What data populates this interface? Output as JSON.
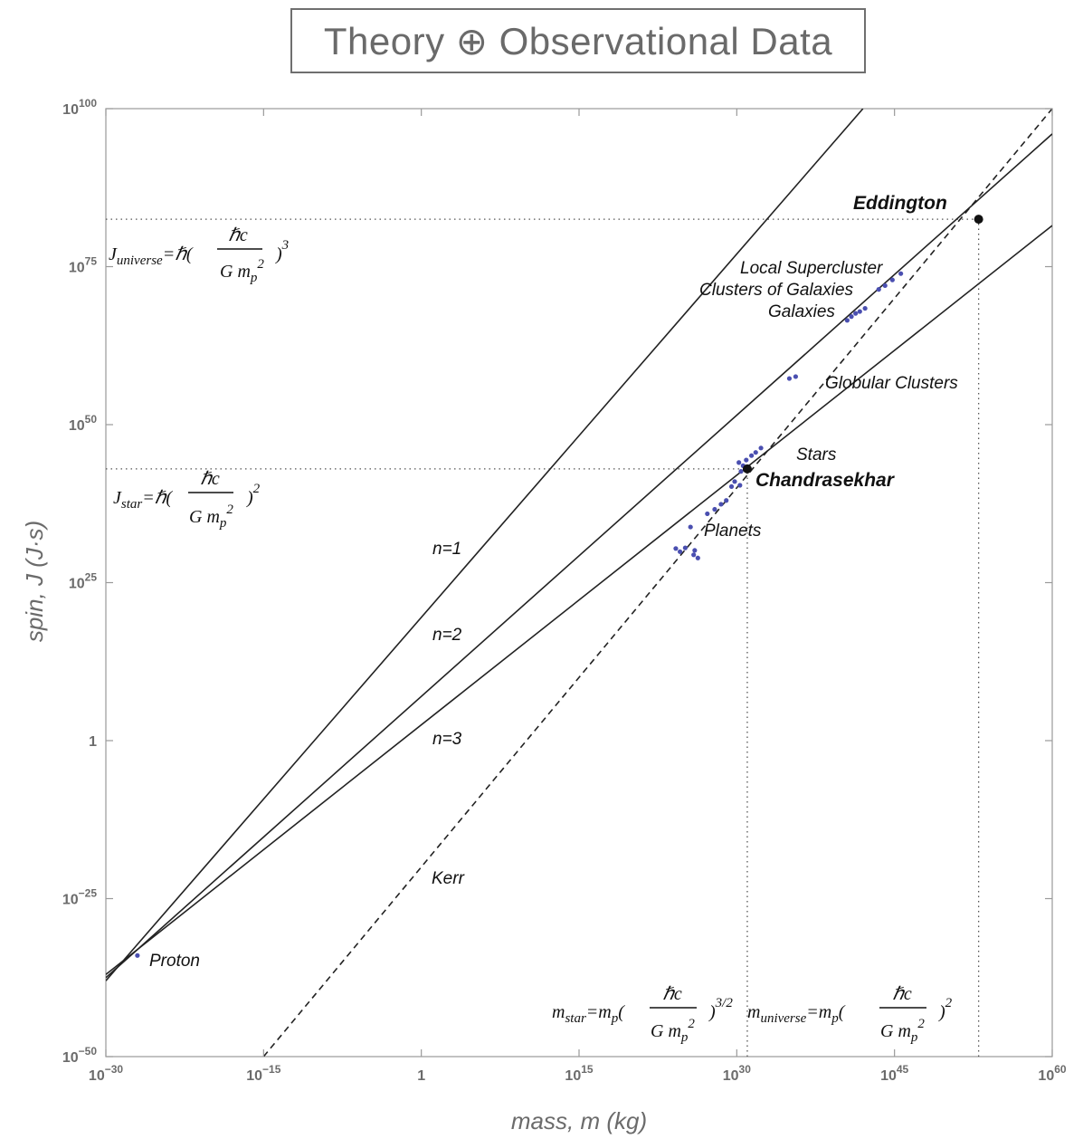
{
  "chart_data": {
    "type": "line",
    "title": "Theory ⊕ Observational Data",
    "xlabel": "mass, m (kg)",
    "ylabel": "spin, J (J·s)",
    "xscale": "log",
    "yscale": "log",
    "xlim_log10": [
      -30,
      60
    ],
    "ylim_log10": [
      -50,
      100
    ],
    "x_ticks": [
      {
        "label": "10",
        "exp": "−30"
      },
      {
        "label": "10",
        "exp": "−15"
      },
      {
        "label": "1",
        "exp": ""
      },
      {
        "label": "10",
        "exp": "15"
      },
      {
        "label": "10",
        "exp": "30"
      },
      {
        "label": "10",
        "exp": "45"
      },
      {
        "label": "10",
        "exp": "60"
      }
    ],
    "y_ticks": [
      {
        "label": "10",
        "exp": "−50"
      },
      {
        "label": "10",
        "exp": "−25"
      },
      {
        "label": "1",
        "exp": ""
      },
      {
        "label": "10",
        "exp": "25"
      },
      {
        "label": "10",
        "exp": "50"
      },
      {
        "label": "10",
        "exp": "75"
      },
      {
        "label": "10",
        "exp": "100"
      }
    ],
    "grid": false,
    "series": [
      {
        "name": "n=1",
        "style": "solid",
        "log_m": [
          -30,
          42
        ],
        "log_J": [
          -38,
          100
        ]
      },
      {
        "name": "n=2",
        "style": "solid",
        "log_m": [
          -30,
          60
        ],
        "log_J": [
          -37.5,
          96
        ]
      },
      {
        "name": "n=3",
        "style": "solid",
        "log_m": [
          -30,
          60
        ],
        "log_J": [
          -37,
          81.5
        ]
      },
      {
        "name": "Kerr",
        "style": "dashed",
        "log_m": [
          -15,
          60
        ],
        "log_J": [
          -50,
          100
        ]
      }
    ],
    "guides": [
      {
        "orient": "h",
        "log_J": 82.5,
        "log_m_end": 53
      },
      {
        "orient": "h",
        "log_J": 43,
        "log_m_end": 31
      },
      {
        "orient": "v",
        "log_m": 31,
        "log_J_end": 43
      },
      {
        "orient": "v",
        "log_m": 53,
        "log_J_end": 82.5
      }
    ],
    "points": [
      {
        "log_m": -27,
        "log_J": -34,
        "kind": "data"
      },
      {
        "log_m": 24.2,
        "log_J": 30.4,
        "kind": "data"
      },
      {
        "log_m": 24.6,
        "log_J": 29.9,
        "kind": "data"
      },
      {
        "log_m": 25.1,
        "log_J": 30.5,
        "kind": "data"
      },
      {
        "log_m": 25.9,
        "log_J": 29.4,
        "kind": "data"
      },
      {
        "log_m": 26.3,
        "log_J": 28.9,
        "kind": "data"
      },
      {
        "log_m": 26.0,
        "log_J": 30.1,
        "kind": "data"
      },
      {
        "log_m": 25.6,
        "log_J": 33.8,
        "kind": "data"
      },
      {
        "log_m": 27.2,
        "log_J": 35.9,
        "kind": "data"
      },
      {
        "log_m": 27.9,
        "log_J": 36.6,
        "kind": "data"
      },
      {
        "log_m": 28.5,
        "log_J": 37.4,
        "kind": "data"
      },
      {
        "log_m": 29.0,
        "log_J": 38.0,
        "kind": "data"
      },
      {
        "log_m": 29.5,
        "log_J": 40.2,
        "kind": "data"
      },
      {
        "log_m": 29.8,
        "log_J": 41.0,
        "kind": "data"
      },
      {
        "log_m": 30.3,
        "log_J": 40.4,
        "kind": "data"
      },
      {
        "log_m": 30.4,
        "log_J": 42.6,
        "kind": "data"
      },
      {
        "log_m": 30.6,
        "log_J": 43.5,
        "kind": "data"
      },
      {
        "log_m": 30.9,
        "log_J": 44.4,
        "kind": "data"
      },
      {
        "log_m": 31.4,
        "log_J": 45.1,
        "kind": "data"
      },
      {
        "log_m": 31.8,
        "log_J": 45.6,
        "kind": "data"
      },
      {
        "log_m": 32.3,
        "log_J": 46.3,
        "kind": "data"
      },
      {
        "log_m": 30.2,
        "log_J": 44.0,
        "kind": "data"
      },
      {
        "log_m": 35.0,
        "log_J": 57.3,
        "kind": "data"
      },
      {
        "log_m": 35.6,
        "log_J": 57.6,
        "kind": "data"
      },
      {
        "log_m": 40.5,
        "log_J": 66.5,
        "kind": "data"
      },
      {
        "log_m": 40.9,
        "log_J": 67.1,
        "kind": "data"
      },
      {
        "log_m": 41.3,
        "log_J": 67.6,
        "kind": "data"
      },
      {
        "log_m": 41.7,
        "log_J": 67.9,
        "kind": "data"
      },
      {
        "log_m": 42.2,
        "log_J": 68.4,
        "kind": "data"
      },
      {
        "log_m": 43.5,
        "log_J": 71.4,
        "kind": "data"
      },
      {
        "log_m": 44.1,
        "log_J": 72.0,
        "kind": "data"
      },
      {
        "log_m": 44.8,
        "log_J": 72.9,
        "kind": "data"
      },
      {
        "log_m": 45.6,
        "log_J": 73.9,
        "kind": "data"
      },
      {
        "log_m": 31,
        "log_J": 43,
        "kind": "key",
        "name": "Chandrasekhar"
      },
      {
        "log_m": 53,
        "log_J": 82.5,
        "kind": "key",
        "name": "Eddington"
      }
    ],
    "annotations": {
      "n1": "n=1",
      "n2": "n=2",
      "n3": "n=3",
      "kerr": "Kerr",
      "proton": "Proton",
      "planets": "Planets",
      "stars": "Stars",
      "globular": "Globular Clusters",
      "galaxies": "Galaxies",
      "clusters": "Clusters of Galaxies",
      "supercluster": "Local Supercluster",
      "eddington": "Eddington",
      "chandrasekhar": "Chandrasekhar"
    },
    "formulas": {
      "j_universe": {
        "lhs": "J",
        "sub": "universe",
        "eq": "=ℏ(",
        "num": "ℏc",
        "den": "G m",
        "den_sub": "p",
        "den_sup": "2",
        "close": ")",
        "exp": "3"
      },
      "j_star": {
        "lhs": "J",
        "sub": "star",
        "eq": "=ℏ(",
        "num": "ℏc",
        "den": "G m",
        "den_sub": "p",
        "den_sup": "2",
        "close": ")",
        "exp": "2"
      },
      "m_star": {
        "lhs": "m",
        "sub": "star",
        "eq": "=m",
        "eq_sub": "p",
        "open": "(",
        "num": "ℏc",
        "den": "G m",
        "den_sub": "p",
        "den_sup": "2",
        "close": ")",
        "exp": "3/2"
      },
      "m_universe": {
        "lhs": "m",
        "sub": "universe",
        "eq": "=m",
        "eq_sub": "p",
        "open": "(",
        "num": "ℏc",
        "den": "G m",
        "den_sub": "p",
        "den_sup": "2",
        "close": ")",
        "exp": "2"
      }
    },
    "colors": {
      "line": "#222222",
      "data": "#4a4fb0",
      "key": "#111111",
      "axis": "#9a9a9a",
      "guide": "#555555"
    }
  }
}
